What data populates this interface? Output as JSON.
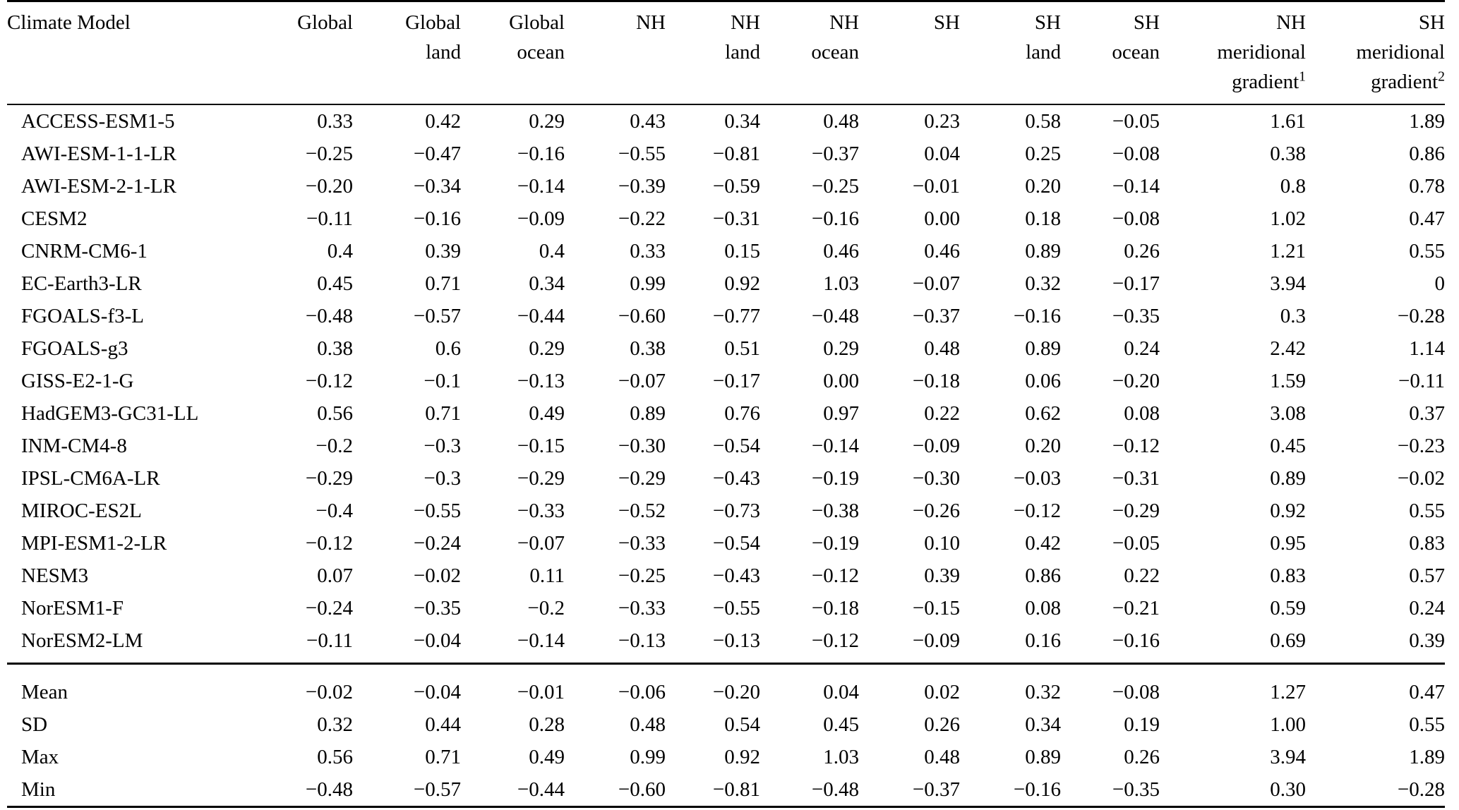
{
  "table": {
    "columns": [
      {
        "label_lines": [
          "Climate Model"
        ],
        "align": "left"
      },
      {
        "label_lines": [
          "Global"
        ]
      },
      {
        "label_lines": [
          "Global",
          "land"
        ]
      },
      {
        "label_lines": [
          "Global",
          "ocean"
        ]
      },
      {
        "label_lines": [
          "NH"
        ]
      },
      {
        "label_lines": [
          "NH",
          "land"
        ]
      },
      {
        "label_lines": [
          "NH",
          "ocean"
        ]
      },
      {
        "label_lines": [
          "SH"
        ]
      },
      {
        "label_lines": [
          "SH",
          "land"
        ]
      },
      {
        "label_lines": [
          "SH",
          "ocean"
        ]
      },
      {
        "label_lines": [
          "NH",
          "meridional",
          "gradient"
        ],
        "sup": "1"
      },
      {
        "label_lines": [
          "SH",
          "meridional",
          "gradient"
        ],
        "sup": "2"
      }
    ],
    "rows": [
      {
        "label": "ACCESS-ESM1-5",
        "values": [
          "0.33",
          "0.42",
          "0.29",
          "0.43",
          "0.34",
          "0.48",
          "0.23",
          "0.58",
          "−0.05",
          "1.61",
          "1.89"
        ]
      },
      {
        "label": "AWI-ESM-1-1-LR",
        "values": [
          "−0.25",
          "−0.47",
          "−0.16",
          "−0.55",
          "−0.81",
          "−0.37",
          "0.04",
          "0.25",
          "−0.08",
          "0.38",
          "0.86"
        ]
      },
      {
        "label": "AWI-ESM-2-1-LR",
        "values": [
          "−0.20",
          "−0.34",
          "−0.14",
          "−0.39",
          "−0.59",
          "−0.25",
          "−0.01",
          "0.20",
          "−0.14",
          "0.8",
          "0.78"
        ]
      },
      {
        "label": "CESM2",
        "values": [
          "−0.11",
          "−0.16",
          "−0.09",
          "−0.22",
          "−0.31",
          "−0.16",
          "0.00",
          "0.18",
          "−0.08",
          "1.02",
          "0.47"
        ]
      },
      {
        "label": "CNRM-CM6-1",
        "values": [
          "0.4",
          "0.39",
          "0.4",
          "0.33",
          "0.15",
          "0.46",
          "0.46",
          "0.89",
          "0.26",
          "1.21",
          "0.55"
        ]
      },
      {
        "label": "EC-Earth3-LR",
        "values": [
          "0.45",
          "0.71",
          "0.34",
          "0.99",
          "0.92",
          "1.03",
          "−0.07",
          "0.32",
          "−0.17",
          "3.94",
          "0"
        ]
      },
      {
        "label": "FGOALS-f3-L",
        "values": [
          "−0.48",
          "−0.57",
          "−0.44",
          "−0.60",
          "−0.77",
          "−0.48",
          "−0.37",
          "−0.16",
          "−0.35",
          "0.3",
          "−0.28"
        ]
      },
      {
        "label": "FGOALS-g3",
        "values": [
          "0.38",
          "0.6",
          "0.29",
          "0.38",
          "0.51",
          "0.29",
          "0.48",
          "0.89",
          "0.24",
          "2.42",
          "1.14"
        ]
      },
      {
        "label": "GISS-E2-1-G",
        "values": [
          "−0.12",
          "−0.1",
          "−0.13",
          "−0.07",
          "−0.17",
          "0.00",
          "−0.18",
          "0.06",
          "−0.20",
          "1.59",
          "−0.11"
        ]
      },
      {
        "label": "HadGEM3-GC31-LL",
        "values": [
          "0.56",
          "0.71",
          "0.49",
          "0.89",
          "0.76",
          "0.97",
          "0.22",
          "0.62",
          "0.08",
          "3.08",
          "0.37"
        ]
      },
      {
        "label": "INM-CM4-8",
        "values": [
          "−0.2",
          "−0.3",
          "−0.15",
          "−0.30",
          "−0.54",
          "−0.14",
          "−0.09",
          "0.20",
          "−0.12",
          "0.45",
          "−0.23"
        ]
      },
      {
        "label": "IPSL-CM6A-LR",
        "values": [
          "−0.29",
          "−0.3",
          "−0.29",
          "−0.29",
          "−0.43",
          "−0.19",
          "−0.30",
          "−0.03",
          "−0.31",
          "0.89",
          "−0.02"
        ]
      },
      {
        "label": "MIROC-ES2L",
        "values": [
          "−0.4",
          "−0.55",
          "−0.33",
          "−0.52",
          "−0.73",
          "−0.38",
          "−0.26",
          "−0.12",
          "−0.29",
          "0.92",
          "0.55"
        ]
      },
      {
        "label": "MPI-ESM1-2-LR",
        "values": [
          "−0.12",
          "−0.24",
          "−0.07",
          "−0.33",
          "−0.54",
          "−0.19",
          "0.10",
          "0.42",
          "−0.05",
          "0.95",
          "0.83"
        ]
      },
      {
        "label": "NESM3",
        "values": [
          "0.07",
          "−0.02",
          "0.11",
          "−0.25",
          "−0.43",
          "−0.12",
          "0.39",
          "0.86",
          "0.22",
          "0.83",
          "0.57"
        ]
      },
      {
        "label": "NorESM1-F",
        "values": [
          "−0.24",
          "−0.35",
          "−0.2",
          "−0.33",
          "−0.55",
          "−0.18",
          "−0.15",
          "0.08",
          "−0.21",
          "0.59",
          "0.24"
        ]
      },
      {
        "label": "NorESM2-LM",
        "values": [
          "−0.11",
          "−0.04",
          "−0.14",
          "−0.13",
          "−0.13",
          "−0.12",
          "−0.09",
          "0.16",
          "−0.16",
          "0.69",
          "0.39"
        ]
      }
    ],
    "summary_rows": [
      {
        "label": "Mean",
        "values": [
          "−0.02",
          "−0.04",
          "−0.01",
          "−0.06",
          "−0.20",
          "0.04",
          "0.02",
          "0.32",
          "−0.08",
          "1.27",
          "0.47"
        ]
      },
      {
        "label": "SD",
        "values": [
          "0.32",
          "0.44",
          "0.28",
          "0.48",
          "0.54",
          "0.45",
          "0.26",
          "0.34",
          "0.19",
          "1.00",
          "0.55"
        ]
      },
      {
        "label": "Max",
        "values": [
          "0.56",
          "0.71",
          "0.49",
          "0.99",
          "0.92",
          "1.03",
          "0.48",
          "0.89",
          "0.26",
          "3.94",
          "1.89"
        ]
      },
      {
        "label": "Min",
        "values": [
          "−0.48",
          "−0.57",
          "−0.44",
          "−0.60",
          "−0.81",
          "−0.48",
          "−0.37",
          "−0.16",
          "−0.35",
          "0.30",
          "−0.28"
        ]
      }
    ],
    "text_color": "#000000",
    "background_color": "#ffffff"
  }
}
